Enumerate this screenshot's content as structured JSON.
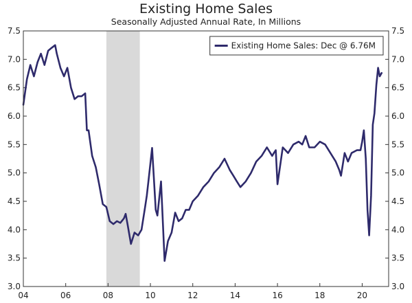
{
  "colors": {
    "series": "#2e2a6b",
    "recession": "#d9d9d9",
    "frame": "#333333"
  },
  "chart_data": {
    "type": "line",
    "title": "Existing Home Sales",
    "subtitle": "Seasonally Adjusted Annual Rate, In Millions",
    "x_range": [
      2004.0,
      2021.25
    ],
    "ylim": [
      3.0,
      7.5
    ],
    "y_ticks": [
      "3.0",
      "3.5",
      "4.0",
      "4.5",
      "5.0",
      "5.5",
      "6.0",
      "6.5",
      "7.0",
      "7.5"
    ],
    "x_ticks": [
      {
        "value": 2004,
        "label": "04"
      },
      {
        "value": 2006,
        "label": "06"
      },
      {
        "value": 2008,
        "label": "08"
      },
      {
        "value": 2010,
        "label": "10"
      },
      {
        "value": 2012,
        "label": "12"
      },
      {
        "value": 2014,
        "label": "14"
      },
      {
        "value": 2016,
        "label": "16"
      },
      {
        "value": 2018,
        "label": "18"
      },
      {
        "value": 2020,
        "label": "20"
      }
    ],
    "recession": [
      2007.92,
      2009.5
    ],
    "legend": {
      "label": "Existing Home Sales: Dec @ 6.76M",
      "position": "top-right"
    },
    "series": [
      {
        "name": "Existing Home Sales",
        "x": [
          2004.0,
          2004.17,
          2004.33,
          2004.5,
          2004.67,
          2004.83,
          2005.0,
          2005.17,
          2005.33,
          2005.5,
          2005.58,
          2005.75,
          2005.92,
          2006.08,
          2006.25,
          2006.42,
          2006.58,
          2006.75,
          2006.92,
          2007.0,
          2007.08,
          2007.25,
          2007.42,
          2007.58,
          2007.75,
          2007.92,
          2008.08,
          2008.25,
          2008.42,
          2008.58,
          2008.75,
          2008.83,
          2008.92,
          2009.08,
          2009.25,
          2009.42,
          2009.58,
          2009.75,
          2009.83,
          2009.92,
          2010.08,
          2010.25,
          2010.33,
          2010.5,
          2010.67,
          2010.83,
          2011.0,
          2011.17,
          2011.33,
          2011.5,
          2011.67,
          2011.83,
          2012.0,
          2012.25,
          2012.5,
          2012.75,
          2013.0,
          2013.25,
          2013.5,
          2013.75,
          2013.92,
          2014.08,
          2014.25,
          2014.5,
          2014.75,
          2015.0,
          2015.25,
          2015.5,
          2015.75,
          2015.83,
          2015.92,
          2016.0,
          2016.25,
          2016.5,
          2016.75,
          2017.0,
          2017.17,
          2017.33,
          2017.5,
          2017.75,
          2018.0,
          2018.25,
          2018.5,
          2018.75,
          2018.92,
          2019.0,
          2019.17,
          2019.33,
          2019.5,
          2019.75,
          2019.92,
          2020.0,
          2020.08,
          2020.17,
          2020.25,
          2020.33,
          2020.42,
          2020.5,
          2020.58,
          2020.67,
          2020.75,
          2020.83,
          2020.92
        ],
        "values": [
          6.2,
          6.65,
          6.9,
          6.7,
          6.95,
          7.1,
          6.9,
          7.15,
          7.2,
          7.25,
          7.1,
          6.85,
          6.7,
          6.85,
          6.5,
          6.3,
          6.35,
          6.35,
          6.4,
          5.75,
          5.75,
          5.3,
          5.1,
          4.8,
          4.45,
          4.4,
          4.15,
          4.1,
          4.15,
          4.12,
          4.2,
          4.28,
          4.1,
          3.75,
          3.95,
          3.9,
          4.0,
          4.4,
          4.6,
          4.9,
          5.44,
          4.35,
          4.25,
          4.85,
          3.45,
          3.8,
          3.95,
          4.3,
          4.15,
          4.2,
          4.35,
          4.35,
          4.5,
          4.6,
          4.75,
          4.85,
          5.0,
          5.1,
          5.25,
          5.05,
          4.95,
          4.85,
          4.75,
          4.85,
          5.0,
          5.2,
          5.3,
          5.45,
          5.3,
          5.35,
          5.4,
          4.8,
          5.45,
          5.35,
          5.5,
          5.55,
          5.5,
          5.65,
          5.45,
          5.45,
          5.55,
          5.5,
          5.35,
          5.2,
          5.05,
          4.95,
          5.35,
          5.2,
          5.35,
          5.4,
          5.4,
          5.55,
          5.75,
          5.25,
          4.35,
          3.9,
          4.6,
          5.85,
          6.05,
          6.55,
          6.85,
          6.7,
          6.76
        ]
      }
    ]
  }
}
